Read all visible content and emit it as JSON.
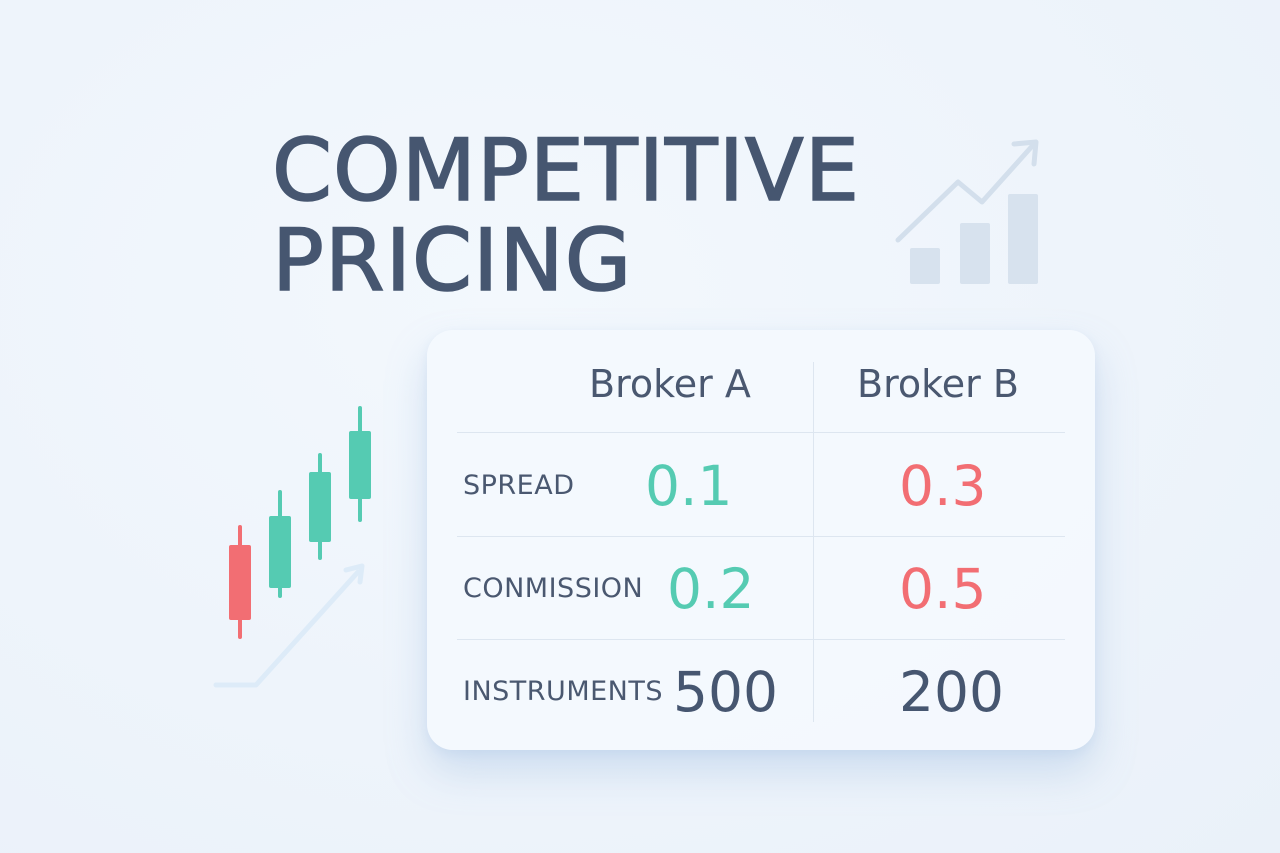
{
  "title": {
    "line1": "COMPETITIVE",
    "line2": "PRICING"
  },
  "table": {
    "headers": [
      "Broker A",
      "Broker B"
    ],
    "rows": [
      {
        "label": "SPREAD",
        "broker_a": "0.1",
        "broker_b": "0.3"
      },
      {
        "label": "CONMISSION",
        "broker_a": "0.2",
        "broker_b": "0.5"
      },
      {
        "label": "INSTRUMENTS",
        "broker_a": "500",
        "broker_b": "200"
      }
    ]
  },
  "colors": {
    "title": "#465670",
    "better_value": "#55cbb2",
    "worse_value": "#f26e73",
    "neutral_value": "#465670",
    "card_background": "#f4f9fe",
    "page_background": "#eef4fb"
  },
  "icons": {
    "growth": "growth-chart-icon",
    "candles": "candlestick-chart-icon"
  }
}
